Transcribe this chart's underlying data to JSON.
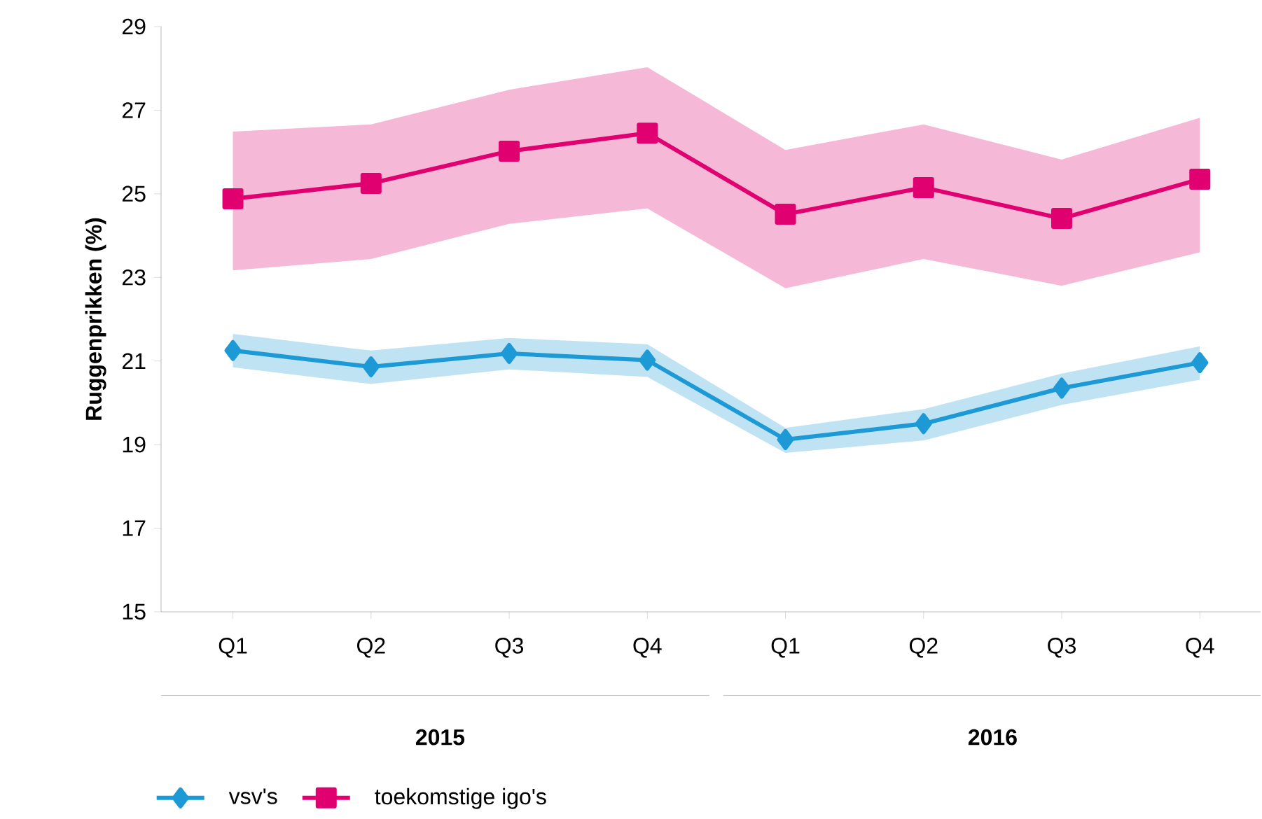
{
  "chart_data": {
    "type": "line",
    "ylabel": "Ruggenprikken (%)",
    "categories": [
      "Q1",
      "Q2",
      "Q3",
      "Q4",
      "Q1",
      "Q2",
      "Q3",
      "Q4"
    ],
    "annotations": [
      "2015",
      "2016"
    ],
    "ylim": [
      15,
      29
    ],
    "yticks": [
      15,
      17,
      19,
      21,
      23,
      25,
      27,
      29
    ],
    "legend": "bottom",
    "grid": false,
    "series": [
      {
        "name": "vsv's",
        "color": "#1d9ad6",
        "marker": "diamond",
        "values": [
          21.25,
          20.86,
          21.18,
          21.02,
          19.12,
          19.5,
          20.35,
          20.96
        ],
        "lower": [
          20.85,
          20.45,
          20.8,
          20.62,
          18.8,
          19.1,
          19.95,
          20.55
        ],
        "upper": [
          21.65,
          21.25,
          21.55,
          21.4,
          19.4,
          19.85,
          20.7,
          21.35
        ]
      },
      {
        "name": "toekomstige igo's",
        "color": "#e0006f",
        "marker": "square",
        "values": [
          24.88,
          25.25,
          26.02,
          26.45,
          24.51,
          25.15,
          24.41,
          25.35
        ],
        "lower": [
          23.17,
          23.44,
          24.28,
          24.65,
          22.74,
          23.44,
          22.8,
          23.6
        ],
        "upper": [
          26.49,
          26.66,
          27.49,
          28.03,
          26.05,
          26.66,
          25.82,
          26.82
        ]
      }
    ]
  }
}
